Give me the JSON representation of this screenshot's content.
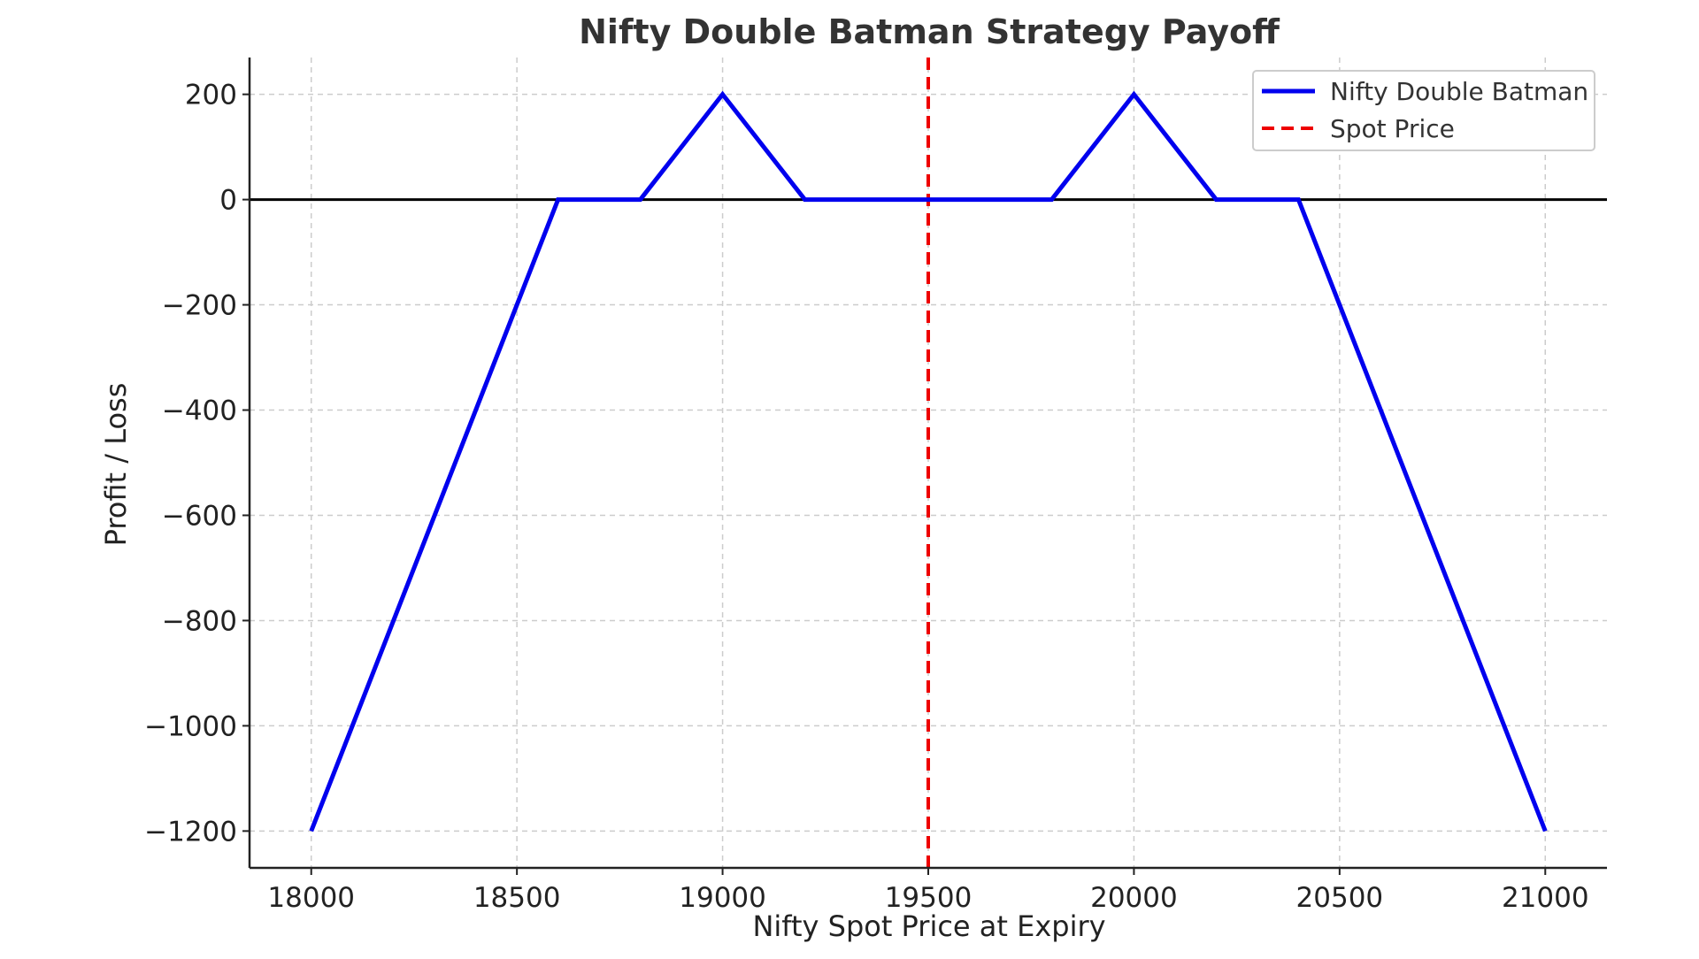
{
  "chart_data": {
    "type": "line",
    "title": "Nifty Double Batman Strategy Payoff",
    "xlabel": "Nifty Spot Price at Expiry",
    "ylabel": "Profit / Loss",
    "xlim": [
      17850,
      21150
    ],
    "ylim": [
      -1270,
      270
    ],
    "xticks": [
      18000,
      18500,
      19000,
      19500,
      20000,
      20500,
      21000
    ],
    "xtick_labels": [
      "18000",
      "18500",
      "19000",
      "19500",
      "20000",
      "20500",
      "21000"
    ],
    "yticks": [
      200,
      0,
      -200,
      -400,
      -600,
      -800,
      -1000,
      -1200
    ],
    "ytick_labels": [
      "200",
      "0",
      "−200",
      "−400",
      "−600",
      "−800",
      "−1000",
      "−1200"
    ],
    "grid": true,
    "legend_position": "top-right",
    "series": [
      {
        "name": "Nifty Double Batman",
        "color": "#0000ee",
        "style": "solid",
        "x": [
          18000,
          18600,
          18800,
          19000,
          19200,
          19800,
          20000,
          20200,
          20400,
          21000
        ],
        "y": [
          -1200,
          0,
          0,
          200,
          0,
          0,
          200,
          0,
          0,
          -1200
        ]
      },
      {
        "name": "Spot Price",
        "color": "#ee0000",
        "style": "dashed",
        "type": "vline",
        "x_value": 19500
      }
    ],
    "zero_line": {
      "y": 0,
      "color": "#000000"
    }
  }
}
